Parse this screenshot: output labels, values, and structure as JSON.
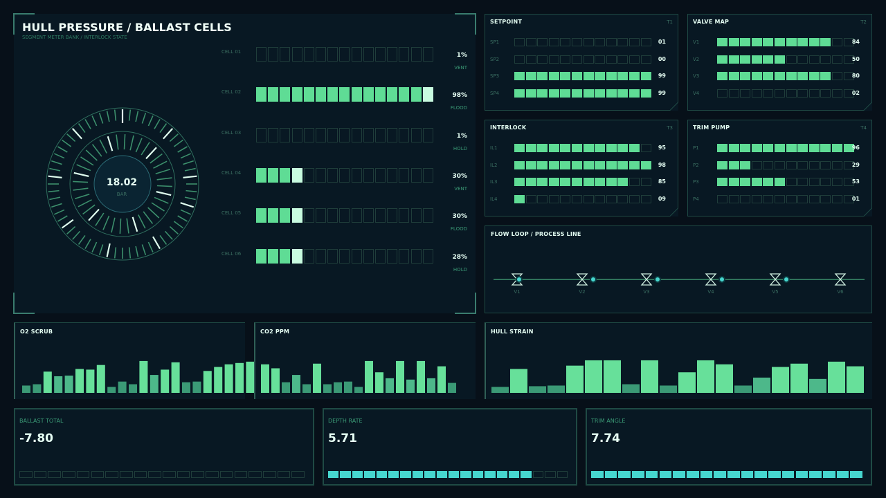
{
  "hull": {
    "title": "HULL PRESSURE / BALLAST CELLS",
    "subtitle": "SEGMENT METER BANK / INTERLOCK STATE",
    "gauge_value": "18.02",
    "gauge_unit": "BAR",
    "cells": [
      {
        "label": "CELL 01",
        "pct": "1%",
        "state": "VENT",
        "on": 0,
        "hi": 0
      },
      {
        "label": "CELL 02",
        "pct": "98%",
        "state": "FLOOD",
        "on": 14,
        "hi": 1
      },
      {
        "label": "CELL 03",
        "pct": "1%",
        "state": "HOLD",
        "on": 0,
        "hi": 0
      },
      {
        "label": "CELL 04",
        "pct": "30%",
        "state": "VENT",
        "on": 3,
        "hi": 1
      },
      {
        "label": "CELL 05",
        "pct": "30%",
        "state": "FLOOD",
        "on": 3,
        "hi": 1
      },
      {
        "label": "CELL 06",
        "pct": "28%",
        "state": "HOLD",
        "on": 3,
        "hi": 1
      }
    ]
  },
  "setpoint": {
    "title": "SETPOINT",
    "tag": "T1",
    "rows": [
      {
        "label": "SP1",
        "value": "01",
        "level": 1
      },
      {
        "label": "SP2",
        "value": "00",
        "level": 0
      },
      {
        "label": "SP3",
        "value": "99",
        "level": 99
      },
      {
        "label": "SP4",
        "value": "99",
        "level": 99
      }
    ]
  },
  "valve_map": {
    "title": "VALVE MAP",
    "tag": "T2",
    "rows": [
      {
        "label": "V1",
        "value": "84",
        "level": 84
      },
      {
        "label": "V2",
        "value": "50",
        "level": 50
      },
      {
        "label": "V3",
        "value": "80",
        "level": 80
      },
      {
        "label": "V4",
        "value": "02",
        "level": 2
      }
    ]
  },
  "interlock": {
    "title": "INTERLOCK",
    "tag": "T3",
    "rows": [
      {
        "label": "IL1",
        "value": "95",
        "level": 95
      },
      {
        "label": "IL2",
        "value": "98",
        "level": 98
      },
      {
        "label": "IL3",
        "value": "85",
        "level": 85
      },
      {
        "label": "IL4",
        "value": "09",
        "level": 9
      }
    ]
  },
  "trim_pump": {
    "title": "TRIM PUMP",
    "tag": "T4",
    "rows": [
      {
        "label": "P1",
        "value": "96",
        "level": 96
      },
      {
        "label": "P2",
        "value": "29",
        "level": 29
      },
      {
        "label": "P3",
        "value": "53",
        "level": 53
      },
      {
        "label": "P4",
        "value": "01",
        "level": 1
      }
    ]
  },
  "flow": {
    "title": "FLOW LOOP / PROCESS LINE",
    "valves": [
      "V1",
      "V2",
      "V3",
      "V4",
      "V5",
      "V6"
    ]
  },
  "o2": {
    "title": "O2 SCRUB",
    "bars": [
      22,
      26,
      64,
      50,
      52,
      72,
      70,
      84,
      18,
      34,
      26,
      96,
      54,
      70,
      92,
      32,
      34,
      66,
      78,
      86,
      90,
      94
    ]
  },
  "co2": {
    "title": "CO2 PPM",
    "bars": [
      86,
      74,
      32,
      54,
      26,
      88,
      26,
      32,
      34,
      18,
      96,
      62,
      44,
      96,
      40,
      96,
      44,
      80,
      30
    ]
  },
  "strain": {
    "title": "HULL STRAIN",
    "bars": [
      18,
      72,
      20,
      22,
      82,
      98,
      98,
      26,
      98,
      22,
      62,
      98,
      86,
      22,
      46,
      78,
      88,
      42,
      94,
      80
    ]
  },
  "metrics": [
    {
      "label": "BALLAST TOTAL",
      "value": "-7.80",
      "on": 0,
      "color": "#46d6cf"
    },
    {
      "label": "DEPTH RATE",
      "value": "5.71",
      "on": 17,
      "color": "#46d6cf"
    },
    {
      "label": "TRIM ANGLE",
      "value": "7.74",
      "on": 20,
      "color": "#46d6cf"
    }
  ],
  "colors": {
    "accent": "#5fdc95",
    "highlight": "#c8fbe0",
    "cyan": "#46d6cf",
    "border": "#1f4a44",
    "bg": "#071019"
  }
}
